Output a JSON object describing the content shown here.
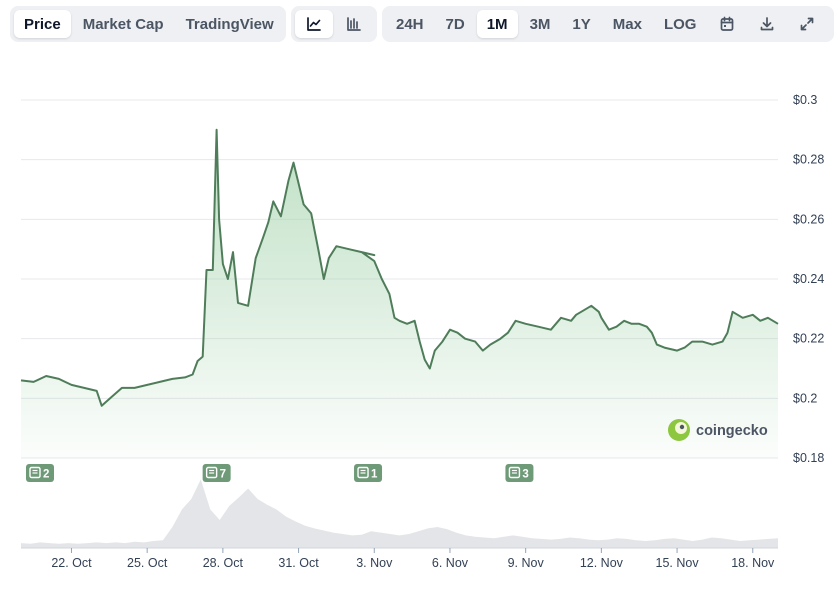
{
  "toolbar": {
    "chart_type_tabs": [
      {
        "label": "Price",
        "active": true
      },
      {
        "label": "Market Cap",
        "active": false
      },
      {
        "label": "TradingView",
        "active": false
      }
    ],
    "style_buttons": [
      {
        "icon": "line-chart-icon",
        "active": true
      },
      {
        "icon": "ohlc-chart-icon",
        "active": false
      }
    ],
    "ranges": [
      {
        "label": "24H",
        "active": false
      },
      {
        "label": "7D",
        "active": false
      },
      {
        "label": "1M",
        "active": true
      },
      {
        "label": "3M",
        "active": false
      },
      {
        "label": "1Y",
        "active": false
      },
      {
        "label": "Max",
        "active": false
      },
      {
        "label": "LOG",
        "active": false
      }
    ],
    "actions": [
      {
        "icon": "calendar-icon"
      },
      {
        "icon": "download-icon"
      },
      {
        "icon": "fullscreen-icon"
      }
    ]
  },
  "watermark": {
    "text": "coingecko"
  },
  "colors": {
    "line": "#4f7d5a",
    "area_top": "#a8d5b0",
    "volume": "#e4e5e8",
    "marker": "#6f9a78",
    "grid": "#e6e8ec"
  },
  "events": [
    {
      "date": "Oct 20",
      "count": "2"
    },
    {
      "date": "Oct 27",
      "count": "7"
    },
    {
      "date": "Nov 2",
      "count": "1"
    },
    {
      "date": "Nov 8",
      "count": "3"
    }
  ],
  "chart_data": {
    "type": "area",
    "title": "",
    "xlabel": "",
    "ylabel": "",
    "grid": true,
    "x_tick_labels": [
      "22. Oct",
      "25. Oct",
      "28. Oct",
      "31. Oct",
      "3. Nov",
      "6. Nov",
      "9. Nov",
      "12. Nov",
      "15. Nov",
      "18. Nov"
    ],
    "y_tick_labels": [
      "$0.3",
      "$0.28",
      "$0.26",
      "$0.24",
      "$0.22",
      "$0.2",
      "$0.18"
    ],
    "ylim": [
      0.18,
      0.3
    ],
    "xlim": [
      "Oct 20",
      "Nov 19"
    ],
    "series": [
      {
        "values": [
          [
            "Oct 20",
            0.206
          ],
          [
            "Oct 20.5",
            0.2055
          ],
          [
            "Oct 21",
            0.2075
          ],
          [
            "Oct 21.5",
            0.2065
          ],
          [
            "Oct 22",
            0.2045
          ],
          [
            "Oct 22.5",
            0.2035
          ],
          [
            "Oct 23",
            0.2025
          ],
          [
            "Oct 23.2",
            0.1975
          ],
          [
            "Oct 23.6",
            0.2005
          ],
          [
            "Oct 24",
            0.2035
          ],
          [
            "Oct 24.5",
            0.2035
          ],
          [
            "Oct 25",
            0.2045
          ],
          [
            "Oct 25.5",
            0.2055
          ],
          [
            "Oct 26",
            0.2065
          ],
          [
            "Oct 26.5",
            0.207
          ],
          [
            "Oct 26.8",
            0.208
          ],
          [
            "Oct 27",
            0.2125
          ],
          [
            "Oct 27.2",
            0.214
          ],
          [
            "Oct 27.35",
            0.243
          ],
          [
            "Oct 27.6",
            0.243
          ],
          [
            "Oct 27.75",
            0.29
          ],
          [
            "Oct 27.85",
            0.26
          ],
          [
            "Oct 28",
            0.245
          ],
          [
            "Oct 28.2",
            0.24
          ],
          [
            "Oct 28.4",
            0.249
          ],
          [
            "Oct 28.6",
            0.232
          ],
          [
            "Oct 29",
            0.231
          ],
          [
            "Oct 29.3",
            0.247
          ],
          [
            "Oct 29.6",
            0.254
          ],
          [
            "Oct 29.8",
            0.259
          ],
          [
            "Oct 30",
            0.266
          ],
          [
            "Oct 30.3",
            0.261
          ],
          [
            "Oct 30.6",
            0.273
          ],
          [
            "Oct 30.8",
            0.279
          ],
          [
            "Oct 31",
            0.272
          ],
          [
            "Oct 31.2",
            0.265
          ],
          [
            "Oct 31.5",
            0.262
          ],
          [
            "Oct 31.8",
            0.249
          ],
          [
            "Oct 32",
            0.24
          ],
          [
            "Oct 32.2",
            0.247
          ],
          [
            "Oct 32.5",
            0.251
          ],
          [
            "Oct 33",
            0.25
          ],
          [
            "Oct 33.5",
            0.249
          ],
          [
            "Oct 34",
            0.248
          ],
          [
            "Nov 2",
            0.25
          ],
          [
            "Nov 2.5",
            0.249
          ],
          [
            "Nov 3",
            0.246
          ],
          [
            "Nov 3.3",
            0.24
          ],
          [
            "Nov 3.6",
            0.235
          ],
          [
            "Nov 3.8",
            0.227
          ],
          [
            "Nov 4",
            0.226
          ],
          [
            "Nov 4.3",
            0.225
          ],
          [
            "Nov 4.6",
            0.226
          ],
          [
            "Nov 4.8",
            0.219
          ],
          [
            "Nov 5",
            0.213
          ],
          [
            "Nov 5.2",
            0.21
          ],
          [
            "Nov 5.4",
            0.216
          ],
          [
            "Nov 5.7",
            0.219
          ],
          [
            "Nov 6",
            0.223
          ],
          [
            "Nov 6.3",
            0.222
          ],
          [
            "Nov 6.6",
            0.22
          ],
          [
            "Nov 7",
            0.219
          ],
          [
            "Nov 7.3",
            0.216
          ],
          [
            "Nov 7.6",
            0.218
          ],
          [
            "Nov 8",
            0.22
          ],
          [
            "Nov 8.3",
            0.222
          ],
          [
            "Nov 8.6",
            0.226
          ],
          [
            "Nov 9",
            0.225
          ],
          [
            "Nov 9.5",
            0.224
          ],
          [
            "Nov 10",
            0.223
          ],
          [
            "Nov 10.4",
            0.227
          ],
          [
            "Nov 10.8",
            0.226
          ],
          [
            "Nov 11",
            0.228
          ],
          [
            "Nov 11.2",
            0.229
          ],
          [
            "Nov 11.6",
            0.231
          ],
          [
            "Nov 11.9",
            0.229
          ],
          [
            "Nov 12",
            0.227
          ],
          [
            "Nov 12.3",
            0.223
          ],
          [
            "Nov 12.6",
            0.224
          ],
          [
            "Nov 12.9",
            0.226
          ],
          [
            "Nov 13.2",
            0.225
          ],
          [
            "Nov 13.5",
            0.225
          ],
          [
            "Nov 13.8",
            0.224
          ],
          [
            "Nov 14",
            0.222
          ],
          [
            "Nov 14.2",
            0.218
          ],
          [
            "Nov 14.5",
            0.217
          ],
          [
            "Nov 15",
            0.216
          ],
          [
            "Nov 15.3",
            0.217
          ],
          [
            "Nov 15.6",
            0.219
          ],
          [
            "Nov 16",
            0.219
          ],
          [
            "Nov 16.4",
            0.218
          ],
          [
            "Nov 16.8",
            0.219
          ],
          [
            "Nov 17",
            0.222
          ],
          [
            "Nov 17.2",
            0.229
          ],
          [
            "Nov 17.6",
            0.227
          ],
          [
            "Nov 18",
            0.228
          ],
          [
            "Nov 18.3",
            0.226
          ],
          [
            "Nov 18.6",
            0.227
          ],
          [
            "Nov 19",
            0.225
          ]
        ]
      }
    ],
    "volume_series_relative": [
      0.07,
      0.06,
      0.08,
      0.07,
      0.06,
      0.07,
      0.06,
      0.07,
      0.08,
      0.07,
      0.08,
      0.07,
      0.09,
      0.08,
      0.1,
      0.11,
      0.3,
      0.55,
      0.7,
      0.98,
      0.55,
      0.4,
      0.6,
      0.72,
      0.85,
      0.7,
      0.62,
      0.55,
      0.45,
      0.38,
      0.32,
      0.28,
      0.25,
      0.22,
      0.2,
      0.18,
      0.19,
      0.24,
      0.22,
      0.2,
      0.18,
      0.2,
      0.24,
      0.28,
      0.3,
      0.27,
      0.22,
      0.18,
      0.16,
      0.15,
      0.14,
      0.16,
      0.18,
      0.16,
      0.14,
      0.13,
      0.12,
      0.13,
      0.15,
      0.14,
      0.12,
      0.11,
      0.12,
      0.14,
      0.13,
      0.11,
      0.1,
      0.11,
      0.13,
      0.14,
      0.12,
      0.1,
      0.12,
      0.15,
      0.14,
      0.12,
      0.1,
      0.11,
      0.12,
      0.13,
      0.14
    ]
  }
}
